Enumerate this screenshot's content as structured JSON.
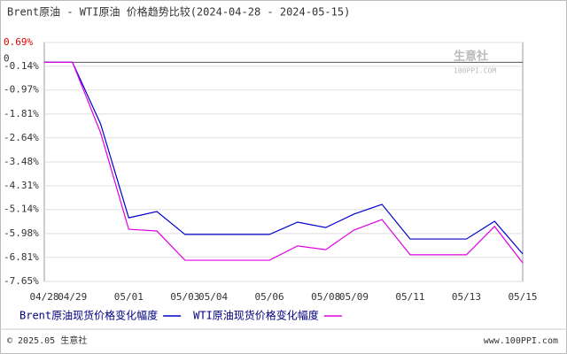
{
  "chart_data": {
    "type": "line",
    "title": "Brent原油 - WTI原油 价格趋势比较(2024-04-28 - 2024-05-15)",
    "categories": [
      "04/28",
      "04/29",
      null,
      "05/01",
      null,
      "05/03",
      "05/04",
      null,
      "05/06",
      null,
      "05/08",
      "05/09",
      null,
      "05/11",
      null,
      "05/13",
      null,
      "05/15"
    ],
    "series": [
      {
        "name": "Brent原油现货价格变化幅度",
        "color": "#0000cc",
        "values": [
          0,
          0,
          -2.15,
          -5.43,
          -5.21,
          -6.01,
          -6.01,
          -6.01,
          -6.01,
          -5.58,
          -5.77,
          -5.3,
          -4.96,
          -6.17,
          -6.17,
          -6.17,
          -5.55,
          -6.69
        ]
      },
      {
        "name": "WTI原油现货价格变化幅度",
        "color": "#e000e0",
        "values": [
          0,
          0,
          -2.46,
          -5.83,
          -5.89,
          -6.91,
          -6.91,
          -6.91,
          -6.91,
          -6.41,
          -6.54,
          -5.86,
          -5.49,
          -6.72,
          -6.72,
          -6.72,
          -5.73,
          -7.0
        ]
      }
    ],
    "ylim": [
      -7.65,
      0.69
    ],
    "yticks": [
      {
        "value": 0.69,
        "label": "0.69%"
      },
      {
        "value": -0.14,
        "label": "-0.14%"
      },
      {
        "value": -0.97,
        "label": "-0.97%"
      },
      {
        "value": -1.81,
        "label": "-1.81%"
      },
      {
        "value": -2.64,
        "label": "-2.64%"
      },
      {
        "value": -3.48,
        "label": "-3.48%"
      },
      {
        "value": -4.31,
        "label": "-4.31%"
      },
      {
        "value": -5.14,
        "label": "-5.14%"
      },
      {
        "value": -5.98,
        "label": "-5.98%"
      },
      {
        "value": -6.81,
        "label": "-6.81%"
      },
      {
        "value": -7.65,
        "label": "-7.65%"
      }
    ],
    "zero_label": {
      "value": 0,
      "label": "0"
    },
    "grid": true,
    "watermark": [
      "生意社",
      "100PPI.COM"
    ],
    "footer_left": "© 2025.05 生意社",
    "footer_right": "www.100PPI.com"
  }
}
